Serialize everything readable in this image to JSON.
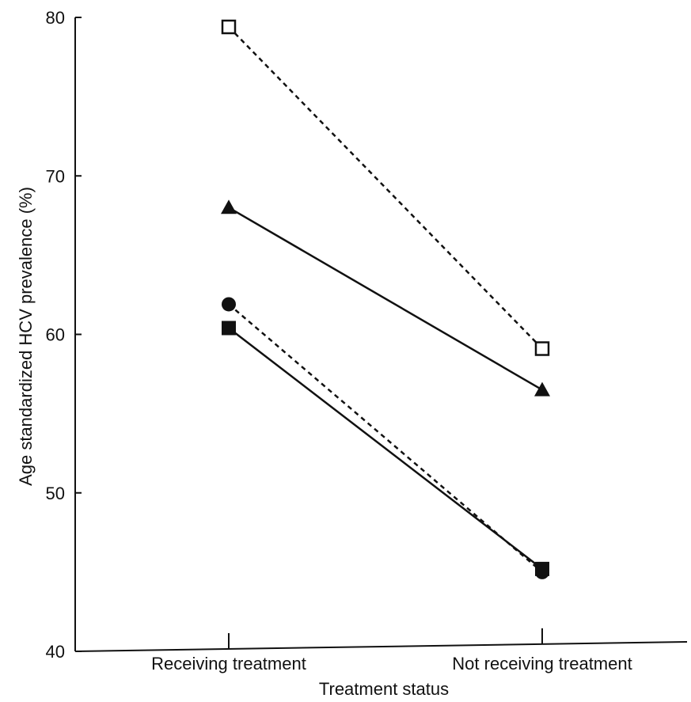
{
  "chart_data": {
    "type": "line",
    "title": "",
    "xlabel": "Treatment status",
    "ylabel": "Age standardized HCV prevalence (%)",
    "categories": [
      "Receiving treatment",
      "Not receiving treatment"
    ],
    "ylim": [
      40,
      80
    ],
    "yticks": [
      40,
      50,
      60,
      70,
      80
    ],
    "grid": false,
    "legend": "none",
    "series": [
      {
        "values": [
          79.4,
          59.1
        ],
        "marker": "open-square",
        "line_style": "dashed"
      },
      {
        "values": [
          68.0,
          56.5
        ],
        "marker": "filled-triangle",
        "line_style": "solid"
      },
      {
        "values": [
          61.9,
          45.0
        ],
        "marker": "filled-circle",
        "line_style": "dashed"
      },
      {
        "values": [
          60.4,
          45.2
        ],
        "marker": "filled-square",
        "line_style": "solid"
      }
    ],
    "colors": {
      "ink": "#111111",
      "background": "#ffffff"
    }
  }
}
